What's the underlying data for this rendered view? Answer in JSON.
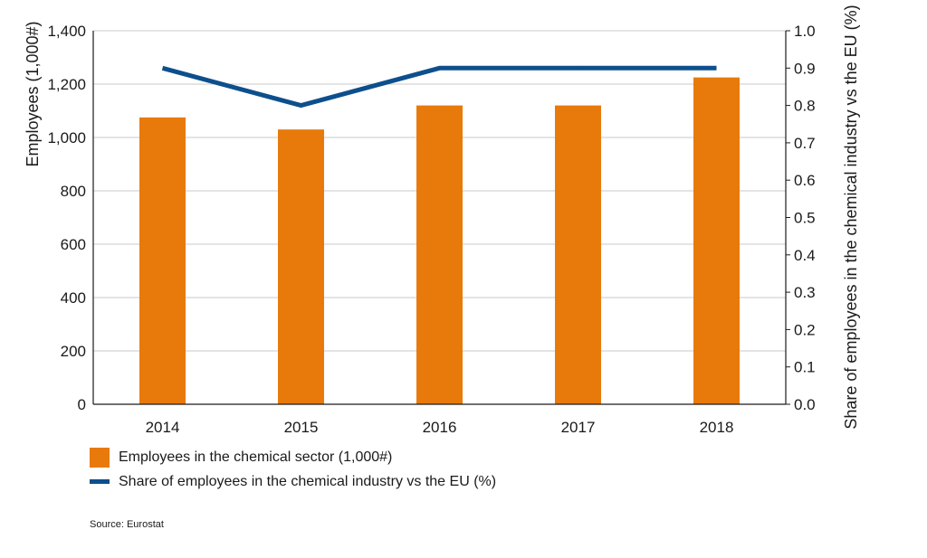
{
  "chart_data": {
    "type": "bar+line",
    "categories": [
      "2014",
      "2015",
      "2016",
      "2017",
      "2018"
    ],
    "series": [
      {
        "name": "Employees in the chemical sector (1,000#)",
        "type": "bar",
        "axis": "left",
        "values": [
          1075,
          1030,
          1120,
          1120,
          1225
        ]
      },
      {
        "name": "Share of employees in the chemical industry vs the EU (%)",
        "type": "line",
        "axis": "right",
        "values": [
          0.9,
          0.8,
          0.9,
          0.9,
          0.9
        ]
      }
    ],
    "ylabel_left": "Employees (1,000#)",
    "ylabel_right": "Share of employees in the chemical industry vs the EU (%)",
    "ylim_left": [
      0,
      1400
    ],
    "ylim_right": [
      0,
      1.0
    ],
    "yticks_left": [
      "0",
      "200",
      "400",
      "600",
      "800",
      "1,000",
      "1,200",
      "1,400"
    ],
    "yticks_right": [
      "0.0",
      "0.1",
      "0.2",
      "0.3",
      "0.4",
      "0.5",
      "0.6",
      "0.7",
      "0.8",
      "0.9",
      "1.0"
    ],
    "grid": "horizontal",
    "legend_position": "bottom-left",
    "colors": {
      "bar": "#e87a0c",
      "line": "#0d4f8c",
      "grid": "#c8c8c8",
      "axis": "#1a1a1a"
    }
  },
  "source": "Source: Eurostat"
}
